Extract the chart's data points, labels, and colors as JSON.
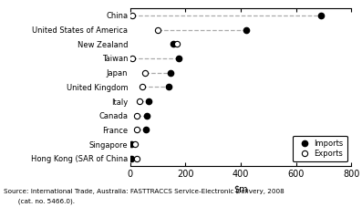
{
  "countries": [
    "Hong Kong (SAR of China",
    "Singapore",
    "France",
    "Canada",
    "Italy",
    "United Kingdom",
    "Japan",
    "Taiwan",
    "New Zealand",
    "United States of America",
    "China"
  ],
  "imports": [
    5,
    5,
    55,
    60,
    65,
    140,
    145,
    175,
    155,
    420,
    690
  ],
  "exports": [
    22,
    18,
    22,
    25,
    32,
    42,
    52,
    8,
    170,
    100,
    8
  ],
  "xlim": [
    0,
    800
  ],
  "xticks": [
    0,
    200,
    400,
    600,
    800
  ],
  "source_line1": "Source: International Trade, Australia: FASTTRACCS Service-Electronic Delivery, 2008",
  "source_line2": "       (cat. no. 5466.0).",
  "background_color": "#ffffff",
  "dot_color_imports": "#000000",
  "dot_color_exports": "#ffffff",
  "line_color": "#aaaaaa",
  "marker_size": 4.5,
  "line_width": 0.9
}
